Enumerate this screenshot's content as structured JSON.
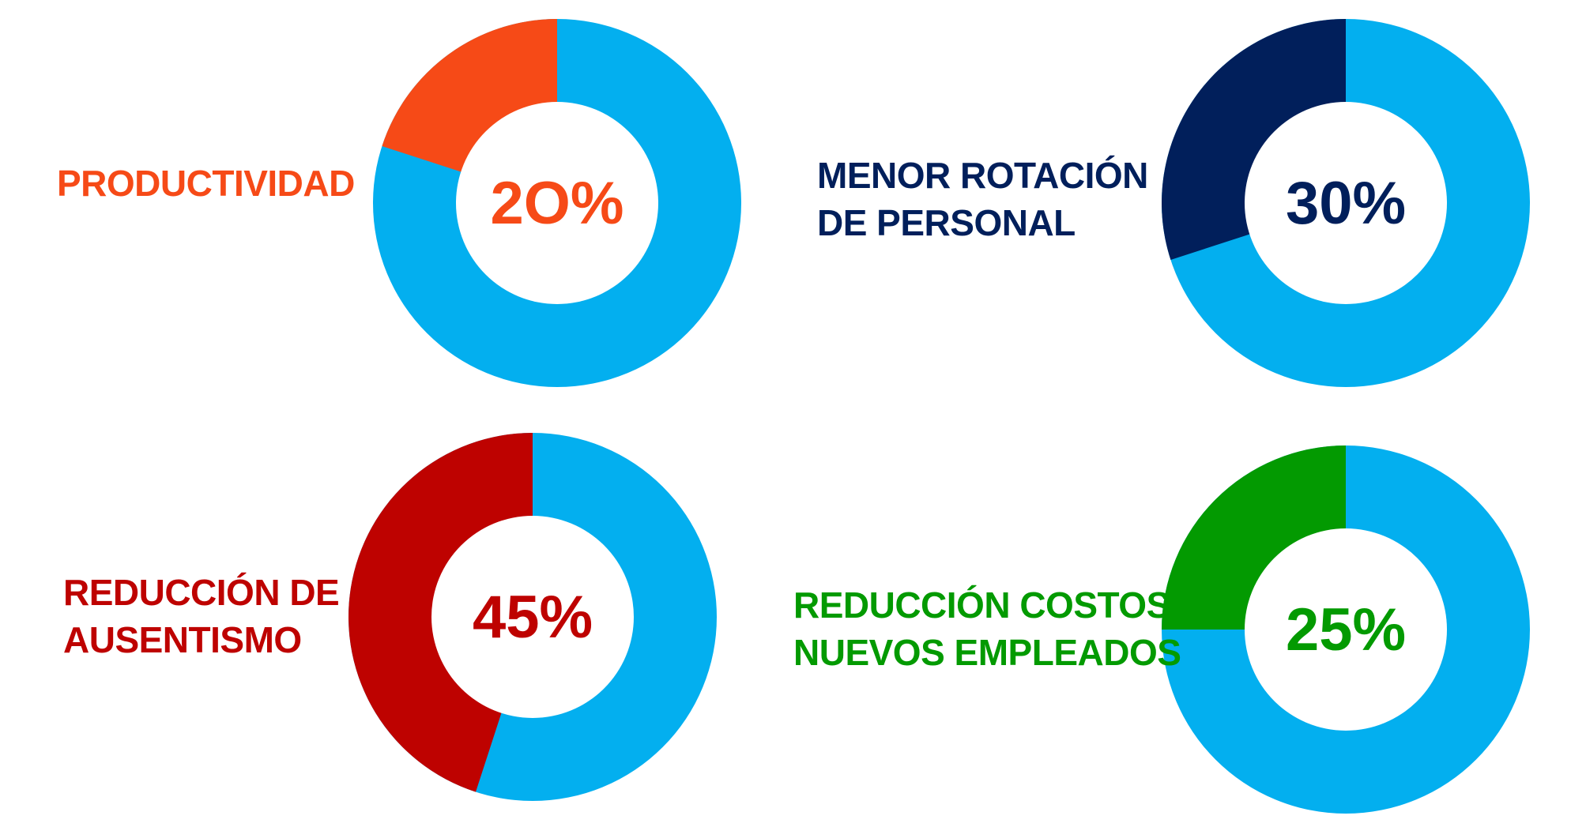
{
  "colors": {
    "base": "#03AFEF"
  },
  "chart_data": [
    {
      "type": "pie",
      "id": "productividad",
      "label_lines": [
        "PRODUCTIVIDAD"
      ],
      "center_text": "2O%",
      "value": 20,
      "total": 100,
      "color": "#F64A17"
    },
    {
      "type": "pie",
      "id": "rotacion",
      "label_lines": [
        "MENOR ROTACIÓN",
        "DE PERSONAL"
      ],
      "center_text": "30%",
      "value": 30,
      "total": 100,
      "color": "#011F5B"
    },
    {
      "type": "pie",
      "id": "ausentismo",
      "label_lines": [
        "REDUCCIÓN DE",
        "AUSENTISMO"
      ],
      "center_text": "45%",
      "value": 45,
      "total": 100,
      "color": "#BE0200"
    },
    {
      "type": "pie",
      "id": "costos",
      "label_lines": [
        "REDUCCIÓN COSTOS",
        "NUEVOS EMPLEADOS"
      ],
      "center_text": "25%",
      "value": 25,
      "total": 100,
      "color": "#039A01"
    }
  ]
}
